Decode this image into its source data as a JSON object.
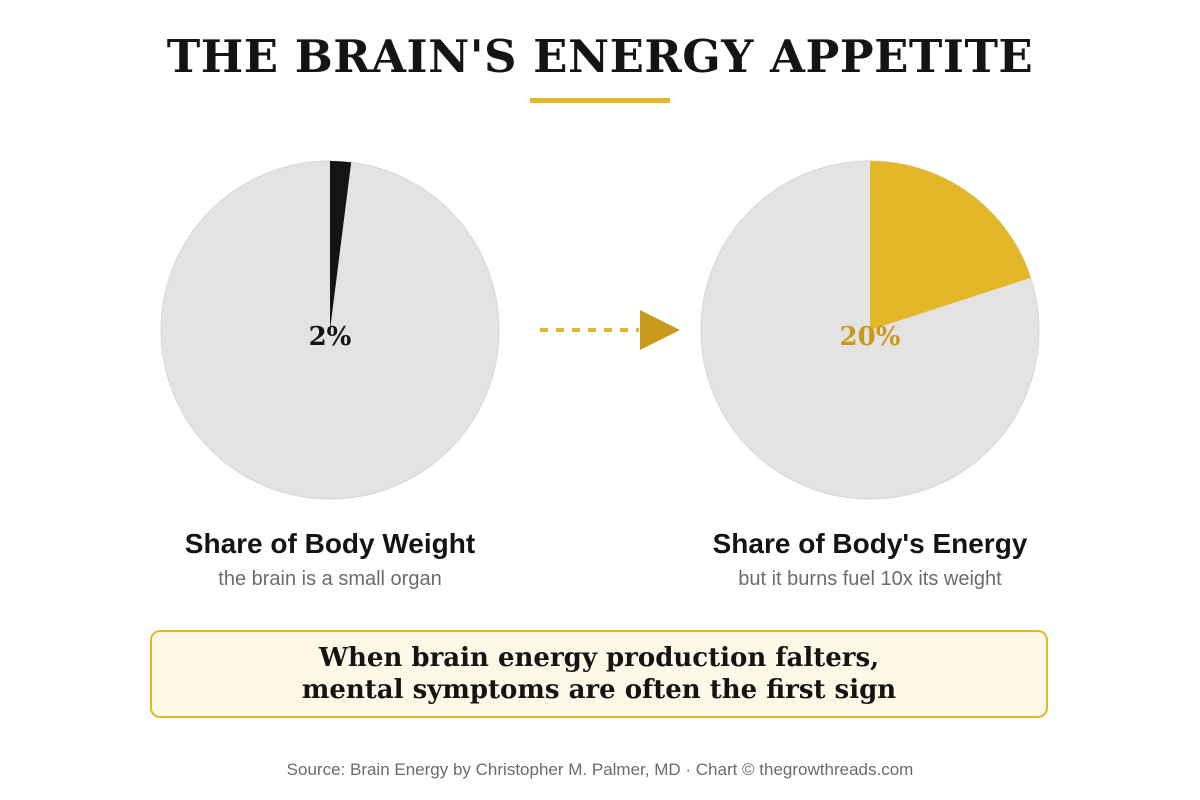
{
  "title": "THE BRAIN'S ENERGY APPETITE",
  "colors": {
    "accent": "#e3b727",
    "accent_text": "#c99a1c",
    "dark": "#141414",
    "pie_bg": "#e3e3e3",
    "callout_bg": "#fef9e6"
  },
  "chart_data": [
    {
      "type": "pie",
      "title": "Share of Body Weight",
      "subtitle": "the brain is a small organ",
      "value_label": "2%",
      "slices": [
        {
          "value": 2,
          "color": "#141414"
        },
        {
          "value": 98,
          "color": "#e3e3e3"
        }
      ]
    },
    {
      "type": "pie",
      "title": "Share of Body's Energy",
      "subtitle": "but it burns fuel 10x its weight",
      "value_label": "20%",
      "slices": [
        {
          "value": 20,
          "color": "#e3b727"
        },
        {
          "value": 80,
          "color": "#e3e3e3"
        }
      ]
    }
  ],
  "callout": {
    "line1": "When brain energy production falters,",
    "line2": "mental symptoms are often the first sign"
  },
  "source": "Source: Brain Energy by Christopher M. Palmer, MD · Chart © thegrowthreads.com"
}
